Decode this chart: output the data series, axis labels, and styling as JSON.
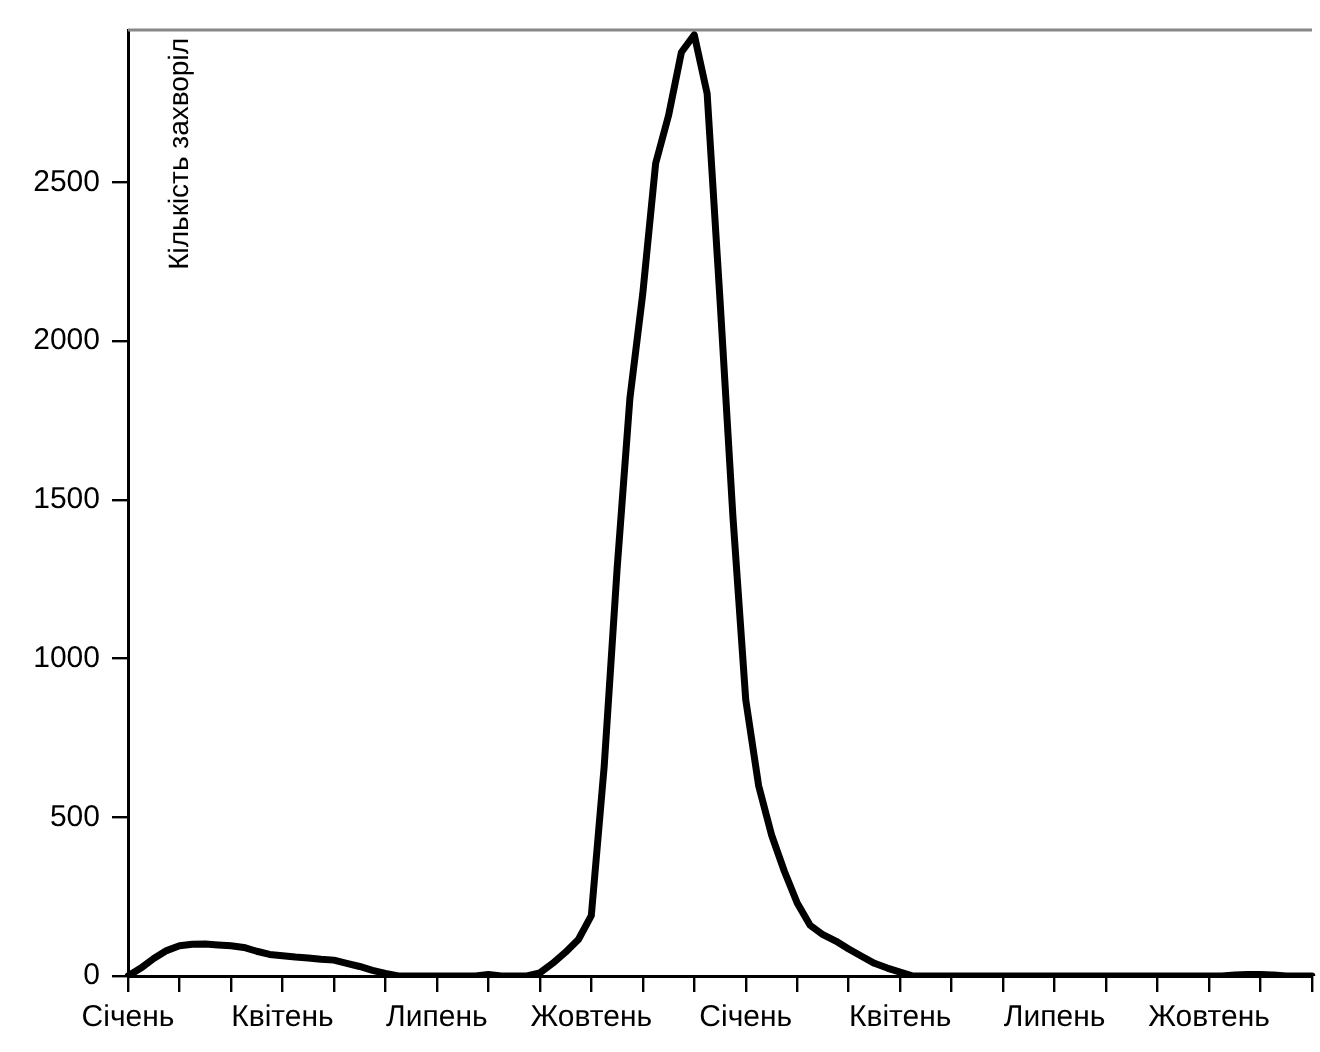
{
  "chart_data": {
    "type": "line",
    "ylabel": "Кількість захворіл",
    "categories": [
      "Січень",
      null,
      null,
      null,
      null,
      null,
      null,
      null,
      null,
      null,
      null,
      null,
      "Квітень",
      null,
      null,
      null,
      null,
      null,
      null,
      null,
      null,
      null,
      null,
      null,
      "Липень",
      null,
      null,
      null,
      null,
      null,
      null,
      null,
      null,
      null,
      null,
      null,
      "Жовтень",
      null,
      null,
      null,
      null,
      null,
      null,
      null,
      null,
      null,
      null,
      null,
      "Січень",
      null,
      null,
      null,
      null,
      null,
      null,
      null,
      null,
      null,
      null,
      null,
      "Квітень",
      null,
      null,
      null,
      null,
      null,
      null,
      null,
      null,
      null,
      null,
      null,
      "Липень",
      null,
      null,
      null,
      null,
      null,
      null,
      null,
      null,
      null,
      null,
      null,
      "Жовтень",
      null,
      null,
      null,
      null,
      null,
      null,
      null,
      null
    ],
    "series": [
      {
        "color": "#000000",
        "values": [
          0,
          25,
          55,
          80,
          95,
          100,
          101,
          98,
          95,
          90,
          78,
          68,
          64,
          60,
          57,
          53,
          50,
          40,
          30,
          18,
          8,
          0,
          0,
          0,
          0,
          0,
          0,
          0,
          5,
          0,
          0,
          0,
          10,
          40,
          75,
          115,
          190,
          660,
          1280,
          1820,
          2150,
          2560,
          2710,
          2910,
          2965,
          2780,
          2130,
          1450,
          870,
          600,
          445,
          330,
          230,
          160,
          130,
          110,
          85,
          62,
          40,
          25,
          12,
          0,
          0,
          0,
          0,
          0,
          0,
          0,
          0,
          0,
          0,
          0,
          0,
          0,
          0,
          0,
          0,
          0,
          0,
          0,
          0,
          0,
          0,
          0,
          0,
          0,
          3,
          5,
          5,
          3,
          0,
          0,
          0
        ]
      }
    ],
    "ylim": [
      0,
      2980
    ],
    "yticks": [
      0,
      500,
      1000,
      1500,
      2000,
      2500
    ],
    "grid": false,
    "legend": false,
    "marker": "none",
    "line_style": "solid"
  }
}
